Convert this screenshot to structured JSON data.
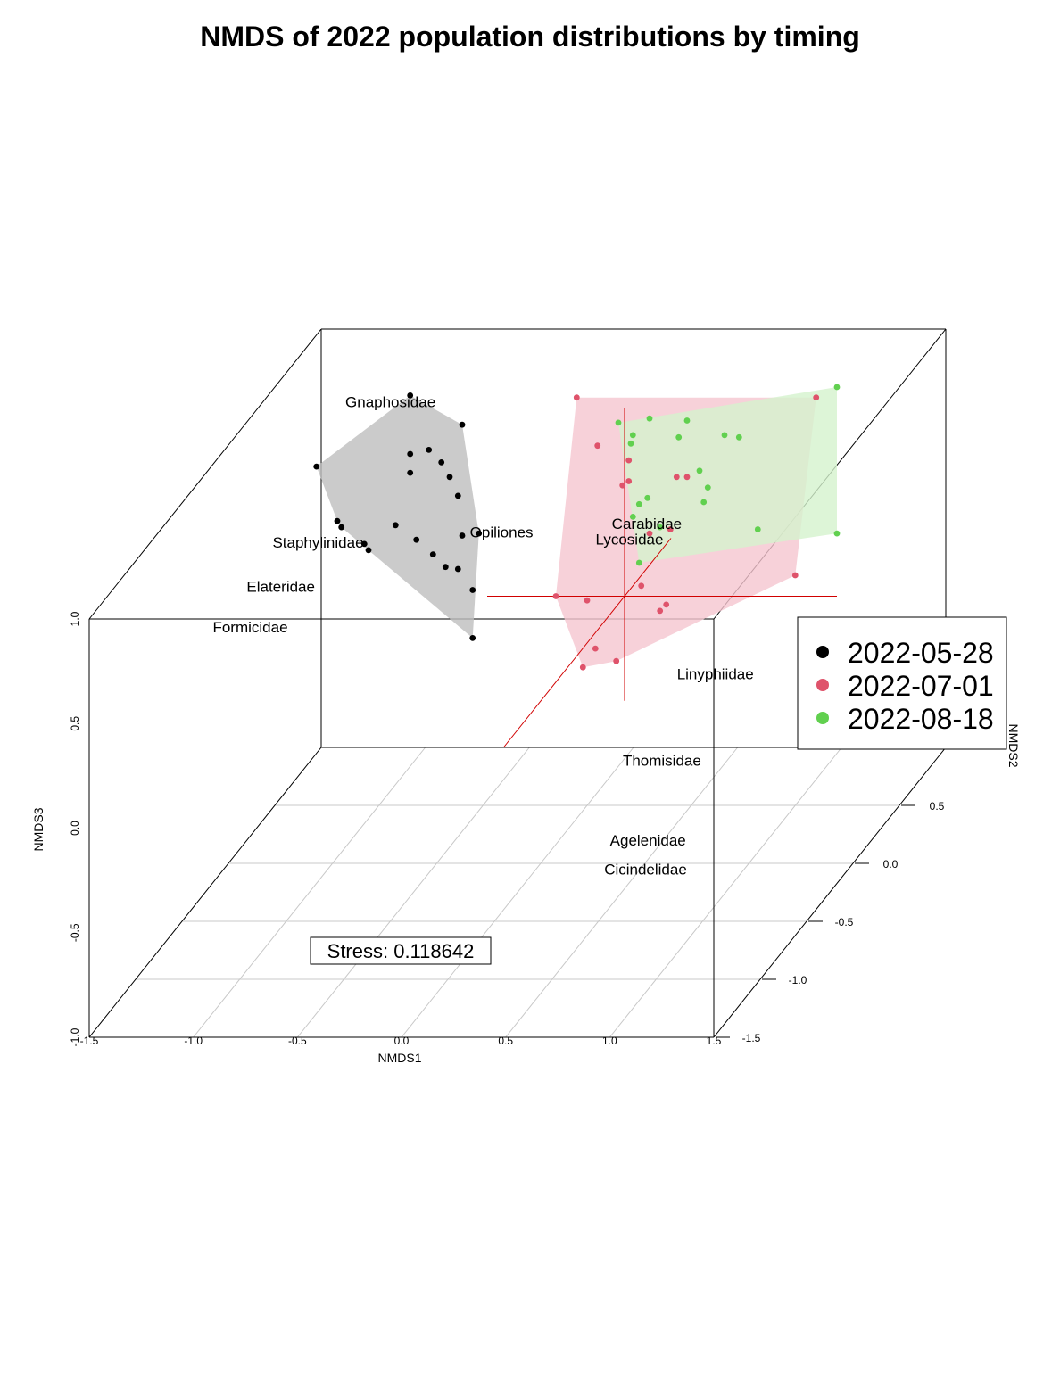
{
  "chart_data": {
    "type": "scatter",
    "subtype": "3d-scatter-with-convex-hulls",
    "title": "NMDS of 2022 population distributions by timing",
    "xlabel": "NMDS1",
    "ylabel": "NMDS2",
    "zlabel": "NMDS3",
    "xlim": [
      -1.5,
      1.5
    ],
    "ylim": [
      -1.5,
      1.0
    ],
    "zlim": [
      -1.0,
      1.0
    ],
    "x_ticks": [
      "-1.5",
      "-1.0",
      "-0.5",
      "0.0",
      "0.5",
      "1.0",
      "1.5"
    ],
    "y_ticks": [
      "-1.5",
      "-1.0",
      "-0.5",
      "0.0",
      "0.5"
    ],
    "z_ticks": [
      "-1.0",
      "-0.5",
      "0.0",
      "0.5",
      "1.0"
    ],
    "grid": true,
    "legend_position": "right",
    "stress_label": "Stress: 0.118642",
    "series": [
      {
        "name": "2022-05-28",
        "color": "#000000",
        "hull_color": "#bebebe",
        "points": [
          [
            -0.85,
            0.96
          ],
          [
            -0.6,
            0.82
          ],
          [
            -1.3,
            0.62
          ],
          [
            -0.85,
            0.68
          ],
          [
            -0.76,
            0.7
          ],
          [
            -0.7,
            0.64
          ],
          [
            -0.85,
            0.59
          ],
          [
            -0.66,
            0.57
          ],
          [
            -0.62,
            0.48
          ],
          [
            -1.2,
            0.36
          ],
          [
            -1.18,
            0.33
          ],
          [
            -0.92,
            0.34
          ],
          [
            -0.6,
            0.29
          ],
          [
            -0.82,
            0.27
          ],
          [
            -0.74,
            0.2
          ],
          [
            -1.07,
            0.25
          ],
          [
            -1.05,
            0.22
          ],
          [
            -0.68,
            0.14
          ],
          [
            -0.62,
            0.13
          ],
          [
            -0.55,
            0.03
          ],
          [
            -0.52,
            0.3
          ],
          [
            -0.55,
            -0.2
          ]
        ]
      },
      {
        "name": "2022-07-01",
        "color": "#df536b",
        "hull_color": "#f5c6cf",
        "points": [
          [
            -0.05,
            0.95
          ],
          [
            1.1,
            0.95
          ],
          [
            0.05,
            0.72
          ],
          [
            0.2,
            0.65
          ],
          [
            0.43,
            0.57
          ],
          [
            0.48,
            0.57
          ],
          [
            0.2,
            0.55
          ],
          [
            0.17,
            0.53
          ],
          [
            0.4,
            0.32
          ],
          [
            1.0,
            0.1
          ],
          [
            0.26,
            0.05
          ],
          [
            -0.15,
            0.0
          ],
          [
            0.0,
            -0.02
          ],
          [
            0.38,
            -0.04
          ],
          [
            0.35,
            -0.07
          ],
          [
            0.04,
            -0.25
          ],
          [
            0.14,
            -0.31
          ],
          [
            0.3,
            0.3
          ],
          [
            -0.02,
            -0.34
          ]
        ]
      },
      {
        "name": "2022-08-18",
        "color": "#61d04f",
        "hull_color": "#d4f2cd",
        "points": [
          [
            1.2,
            1.0
          ],
          [
            0.15,
            0.83
          ],
          [
            0.3,
            0.85
          ],
          [
            0.48,
            0.84
          ],
          [
            0.66,
            0.77
          ],
          [
            0.73,
            0.76
          ],
          [
            0.22,
            0.77
          ],
          [
            0.44,
            0.76
          ],
          [
            0.21,
            0.73
          ],
          [
            0.54,
            0.6
          ],
          [
            0.58,
            0.52
          ],
          [
            0.56,
            0.45
          ],
          [
            0.29,
            0.47
          ],
          [
            0.25,
            0.44
          ],
          [
            0.82,
            0.32
          ],
          [
            1.2,
            0.3
          ],
          [
            0.22,
            0.38
          ],
          [
            0.35,
            0.33
          ],
          [
            0.25,
            0.16
          ]
        ]
      }
    ],
    "species_labels": [
      {
        "name": "Gnaphosidae",
        "x": -0.9,
        "y": 0.4,
        "z": 0.96
      },
      {
        "name": "Staphylinidae",
        "x": -0.98,
        "y": -0.2,
        "z": 0.62
      },
      {
        "name": "Opiliones",
        "x": -0.09,
        "y": -0.22,
        "z": 0.68
      },
      {
        "name": "Carabidae",
        "x": 0.59,
        "y": -0.18,
        "z": 0.7
      },
      {
        "name": "Lycosidae",
        "x": 0.52,
        "y": -0.21,
        "z": 0.64
      },
      {
        "name": "Elateridae",
        "x": -1.07,
        "y": -0.4,
        "z": 0.52
      },
      {
        "name": "Formicidae",
        "x": -1.15,
        "y": -0.55,
        "z": 0.41
      },
      {
        "name": "Linyphiidae",
        "x": 0.95,
        "y": -0.25,
        "z": 0.02
      },
      {
        "name": "Thomisidae",
        "x": 0.85,
        "y": -0.6,
        "z": -0.2
      },
      {
        "name": "Agelenidae",
        "x": 1.05,
        "y": -1.2,
        "z": -0.25
      },
      {
        "name": "Cicindelidae",
        "x": 1.15,
        "y": -1.45,
        "z": -0.25
      }
    ]
  }
}
